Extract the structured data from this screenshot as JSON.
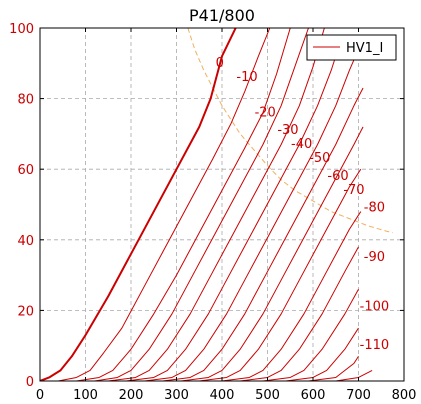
{
  "chart_data": {
    "type": "line",
    "title": "P41/800",
    "xlim": [
      0,
      800
    ],
    "ylim": [
      0,
      100
    ],
    "x_ticks": [
      0,
      100,
      200,
      300,
      400,
      500,
      600,
      700,
      800
    ],
    "y_ticks": [
      0,
      20,
      40,
      60,
      80,
      100
    ],
    "grid": true,
    "legend": {
      "position": "top-right",
      "entries": [
        "HV1_I"
      ]
    },
    "colors": {
      "curve": "#cc0000",
      "grid": "#aaaaaa",
      "dissipation": "#f0b060",
      "y_tick_text": "#cc0000"
    },
    "series": [
      {
        "name": "HV1_I",
        "label": "0",
        "bold": true,
        "points": [
          [
            0,
            0
          ],
          [
            20,
            1
          ],
          [
            45,
            3
          ],
          [
            70,
            7
          ],
          [
            100,
            13
          ],
          [
            150,
            24
          ],
          [
            200,
            36
          ],
          [
            250,
            48
          ],
          [
            300,
            60
          ],
          [
            350,
            72
          ],
          [
            375,
            80
          ],
          [
            400,
            92
          ],
          [
            430,
            100
          ]
        ]
      },
      {
        "label": "-10",
        "points": [
          [
            40,
            0
          ],
          [
            80,
            1
          ],
          [
            110,
            3
          ],
          [
            140,
            8
          ],
          [
            180,
            15
          ],
          [
            230,
            27
          ],
          [
            280,
            39
          ],
          [
            330,
            51
          ],
          [
            380,
            63
          ],
          [
            420,
            73
          ],
          [
            450,
            82
          ],
          [
            480,
            92
          ],
          [
            505,
            100
          ]
        ]
      },
      {
        "label": "-20",
        "points": [
          [
            80,
            0
          ],
          [
            130,
            1
          ],
          [
            160,
            3
          ],
          [
            200,
            9
          ],
          [
            250,
            19
          ],
          [
            300,
            30
          ],
          [
            350,
            42
          ],
          [
            400,
            54
          ],
          [
            450,
            66
          ],
          [
            490,
            76
          ],
          [
            520,
            87
          ],
          [
            550,
            100
          ]
        ]
      },
      {
        "label": "-30",
        "points": [
          [
            120,
            0
          ],
          [
            170,
            1
          ],
          [
            200,
            3
          ],
          [
            240,
            9
          ],
          [
            290,
            19
          ],
          [
            340,
            31
          ],
          [
            390,
            43
          ],
          [
            440,
            55
          ],
          [
            490,
            67
          ],
          [
            530,
            78
          ],
          [
            560,
            89
          ],
          [
            590,
            100
          ]
        ]
      },
      {
        "label": "-40",
        "points": [
          [
            150,
            0
          ],
          [
            210,
            1
          ],
          [
            240,
            3
          ],
          [
            280,
            9
          ],
          [
            330,
            19
          ],
          [
            380,
            31
          ],
          [
            430,
            43
          ],
          [
            480,
            55
          ],
          [
            530,
            67
          ],
          [
            570,
            78
          ],
          [
            600,
            89
          ],
          [
            625,
            100
          ]
        ]
      },
      {
        "label": "-50",
        "points": [
          [
            190,
            0
          ],
          [
            250,
            1
          ],
          [
            280,
            3
          ],
          [
            320,
            9
          ],
          [
            370,
            19
          ],
          [
            420,
            31
          ],
          [
            470,
            43
          ],
          [
            520,
            55
          ],
          [
            570,
            67
          ],
          [
            610,
            78
          ],
          [
            640,
            88
          ],
          [
            660,
            96
          ]
        ]
      },
      {
        "label": "-60",
        "points": [
          [
            230,
            0
          ],
          [
            290,
            1
          ],
          [
            320,
            3
          ],
          [
            360,
            9
          ],
          [
            410,
            19
          ],
          [
            460,
            31
          ],
          [
            510,
            43
          ],
          [
            560,
            55
          ],
          [
            610,
            67
          ],
          [
            650,
            78
          ],
          [
            680,
            88
          ],
          [
            690,
            91
          ]
        ]
      },
      {
        "label": "-70",
        "points": [
          [
            270,
            0
          ],
          [
            330,
            1
          ],
          [
            360,
            3
          ],
          [
            400,
            9
          ],
          [
            450,
            19
          ],
          [
            500,
            31
          ],
          [
            550,
            43
          ],
          [
            600,
            55
          ],
          [
            650,
            67
          ],
          [
            690,
            78
          ],
          [
            710,
            83
          ]
        ]
      },
      {
        "label": "-80",
        "points": [
          [
            310,
            0
          ],
          [
            370,
            1
          ],
          [
            400,
            3
          ],
          [
            440,
            9
          ],
          [
            490,
            19
          ],
          [
            540,
            31
          ],
          [
            590,
            43
          ],
          [
            640,
            55
          ],
          [
            690,
            67
          ],
          [
            710,
            72
          ]
        ]
      },
      {
        "label": "-90",
        "points": [
          [
            350,
            0
          ],
          [
            410,
            1
          ],
          [
            440,
            3
          ],
          [
            480,
            9
          ],
          [
            530,
            19
          ],
          [
            580,
            31
          ],
          [
            630,
            43
          ],
          [
            680,
            55
          ],
          [
            705,
            60
          ]
        ]
      },
      {
        "label": "-100",
        "points": [
          [
            400,
            0
          ],
          [
            460,
            1
          ],
          [
            490,
            3
          ],
          [
            530,
            9
          ],
          [
            580,
            19
          ],
          [
            630,
            31
          ],
          [
            680,
            43
          ],
          [
            705,
            48
          ]
        ]
      },
      {
        "label": "-110",
        "points": [
          [
            440,
            0
          ],
          [
            500,
            1
          ],
          [
            530,
            3
          ],
          [
            570,
            9
          ],
          [
            620,
            19
          ],
          [
            670,
            31
          ],
          [
            700,
            38
          ]
        ]
      },
      {
        "label": "",
        "points": [
          [
            490,
            0
          ],
          [
            550,
            1
          ],
          [
            580,
            3
          ],
          [
            620,
            9
          ],
          [
            670,
            19
          ],
          [
            700,
            26
          ]
        ]
      },
      {
        "label": "",
        "points": [
          [
            540,
            0
          ],
          [
            600,
            1
          ],
          [
            630,
            3
          ],
          [
            670,
            9
          ],
          [
            700,
            15
          ]
        ]
      },
      {
        "label": "",
        "points": [
          [
            590,
            0
          ],
          [
            650,
            1
          ],
          [
            690,
            5
          ],
          [
            700,
            7
          ]
        ]
      },
      {
        "label": "",
        "points": [
          [
            650,
            0
          ],
          [
            700,
            1
          ],
          [
            730,
            3
          ]
        ]
      }
    ],
    "curve_labels": [
      {
        "text": "0",
        "x": 395,
        "y": 89
      },
      {
        "text": "-10",
        "x": 455,
        "y": 85
      },
      {
        "text": "-20",
        "x": 495,
        "y": 75
      },
      {
        "text": "-30",
        "x": 545,
        "y": 70
      },
      {
        "text": "-40",
        "x": 575,
        "y": 66
      },
      {
        "text": "-50",
        "x": 615,
        "y": 62
      },
      {
        "text": "-60",
        "x": 655,
        "y": 57
      },
      {
        "text": "-70",
        "x": 690,
        "y": 53
      },
      {
        "text": "-80",
        "x": 735,
        "y": 48
      },
      {
        "text": "-90",
        "x": 735,
        "y": 34
      },
      {
        "text": "-100",
        "x": 735,
        "y": 20
      },
      {
        "text": "-110",
        "x": 735,
        "y": 9
      }
    ],
    "dissipation_curve": [
      [
        325,
        100
      ],
      [
        340,
        94
      ],
      [
        360,
        88
      ],
      [
        380,
        83
      ],
      [
        400,
        78
      ],
      [
        420,
        74
      ],
      [
        440,
        70
      ],
      [
        460,
        67
      ],
      [
        480,
        64
      ],
      [
        500,
        61
      ],
      [
        530,
        57
      ],
      [
        560,
        54
      ],
      [
        600,
        51
      ],
      [
        640,
        48
      ],
      [
        680,
        46
      ],
      [
        720,
        44
      ],
      [
        760,
        42.5
      ],
      [
        775,
        42
      ]
    ]
  }
}
